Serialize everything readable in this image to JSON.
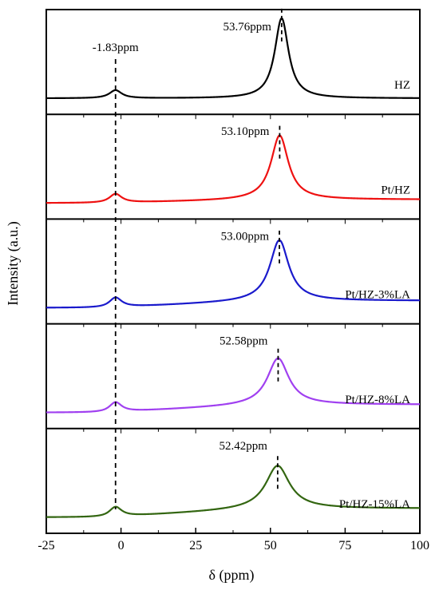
{
  "chart_data": {
    "type": "line",
    "xlabel": "δ (ppm)",
    "ylabel": "Intensity (a.u.)",
    "xlim": [
      -25,
      100
    ],
    "xticks": [
      -25,
      0,
      25,
      50,
      75,
      100
    ],
    "xtick_labels": [
      "-25",
      "0",
      "25",
      "50",
      "75",
      "100"
    ],
    "grid": false,
    "layout": "stacked-panels",
    "reference_peak": {
      "position": -1.83,
      "label": "-1.83ppm"
    },
    "series": [
      {
        "name": "HZ",
        "color": "#000000",
        "peak_position": 53.76,
        "peak_label": "53.76ppm",
        "peak_height": 0.9,
        "peak_width": 2.8,
        "small_peak_height": 0.09,
        "baseline_slope": 0.0
      },
      {
        "name": "Pt/HZ",
        "color": "#ee1111",
        "peak_position": 53.1,
        "peak_label": "53.10ppm",
        "peak_height": 0.72,
        "peak_width": 3.5,
        "small_peak_height": 0.1,
        "baseline_slope": 0.04
      },
      {
        "name": "Pt/HZ-3%LA",
        "color": "#1a1acc",
        "peak_position": 53.0,
        "peak_label": "53.00ppm",
        "peak_height": 0.68,
        "peak_width": 3.8,
        "small_peak_height": 0.11,
        "baseline_slope": 0.08
      },
      {
        "name": "Pt/HZ-8%LA",
        "color": "#a040f0",
        "peak_position": 52.58,
        "peak_label": "52.58ppm",
        "peak_height": 0.52,
        "peak_width": 4.3,
        "small_peak_height": 0.11,
        "baseline_slope": 0.09
      },
      {
        "name": "Pt/HZ-15%LA",
        "color": "#336611",
        "peak_position": 52.42,
        "peak_label": "52.42ppm",
        "peak_height": 0.48,
        "peak_width": 4.8,
        "small_peak_height": 0.11,
        "baseline_slope": 0.1
      }
    ]
  }
}
